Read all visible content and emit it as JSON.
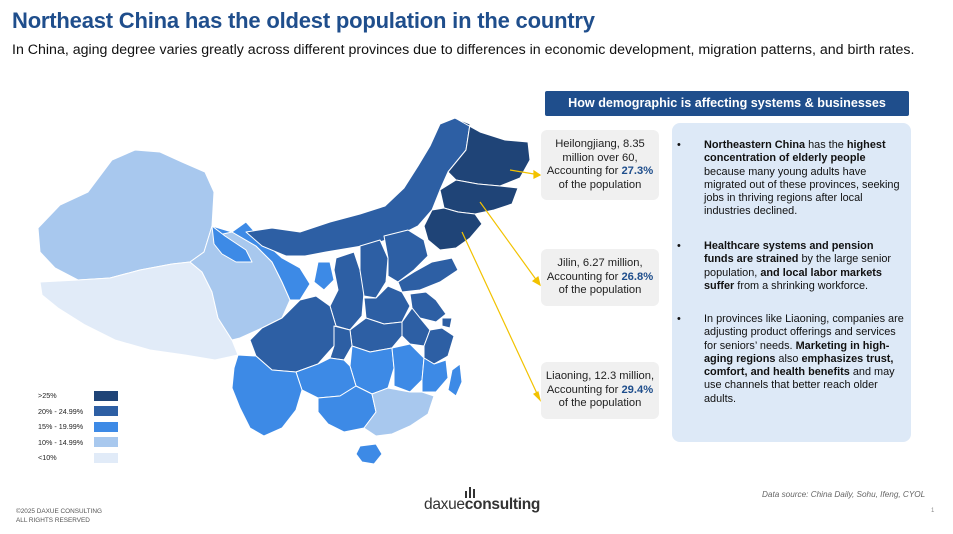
{
  "title": "Northeast China has the oldest population in the country",
  "subtitle": "In China, aging degree varies greatly across different provinces due to differences in economic development, migration patterns, and birth rates.",
  "colors": {
    "over25": "#1f4477",
    "p20_25": "#2d5fa4",
    "p15_20": "#3d8ae6",
    "p10_15": "#a8c8ee",
    "under10": "#e1ebf8",
    "accent": "#1f4e8c",
    "arrow": "#f2c200"
  },
  "legend": [
    {
      "label": ">25%",
      "color": "#1f4477"
    },
    {
      "label": "20% - 24.99%",
      "color": "#2d5fa4"
    },
    {
      "label": "15% - 19.99%",
      "color": "#3d8ae6"
    },
    {
      "label": "10% - 14.99%",
      "color": "#a8c8ee"
    },
    {
      "label": "<10%",
      "color": "#e1ebf8"
    }
  ],
  "callouts": {
    "heilongjiang": {
      "pre": "Heilongjiang, 8.35 million over 60, Accounting for ",
      "value": "27.3%",
      "post": " of the population"
    },
    "jilin": {
      "pre": "Jilin, 6.27 million, Accounting for ",
      "value": "26.8%",
      "post": " of the population"
    },
    "liaoning": {
      "pre": "Liaoning, 12.3 million, Accounting for ",
      "value": "29.4%",
      "post": " of the population"
    }
  },
  "panel": {
    "header": "How demographic is affecting systems & businesses",
    "bullet_symbol": "•",
    "b1": {
      "bold1": "Northeastern China",
      "t1": " has the ",
      "bold2": "highest concentration of elderly people",
      "t2": " because many young adults have migrated out of these provinces, seeking jobs in thriving regions after local industries declined."
    },
    "b2": {
      "bold1": "Healthcare systems and pension funds are strained",
      "t1": " by the large senior population, ",
      "bold2": "and local labor markets suffer",
      "t2": " from a shrinking workforce."
    },
    "b3": {
      "t1": "In provinces like Liaoning, companies are adjusting product offerings and services for seniors’ needs. ",
      "bold1": "Marketing in high-aging regions",
      "t2": " also ",
      "bold2": "emphasizes trust, comfort, and health benefits",
      "t3": " and may use channels that better reach older adults."
    }
  },
  "source": "Data source: China Daily, Sohu, Ifeng, CYOL",
  "copyright": {
    "line1": "©2025 DAXUE CONSULTING",
    "line2": "ALL RIGHTS RESERVED"
  },
  "logo": {
    "part1": "daxue",
    "part2": "consulting"
  },
  "page_number": "1"
}
